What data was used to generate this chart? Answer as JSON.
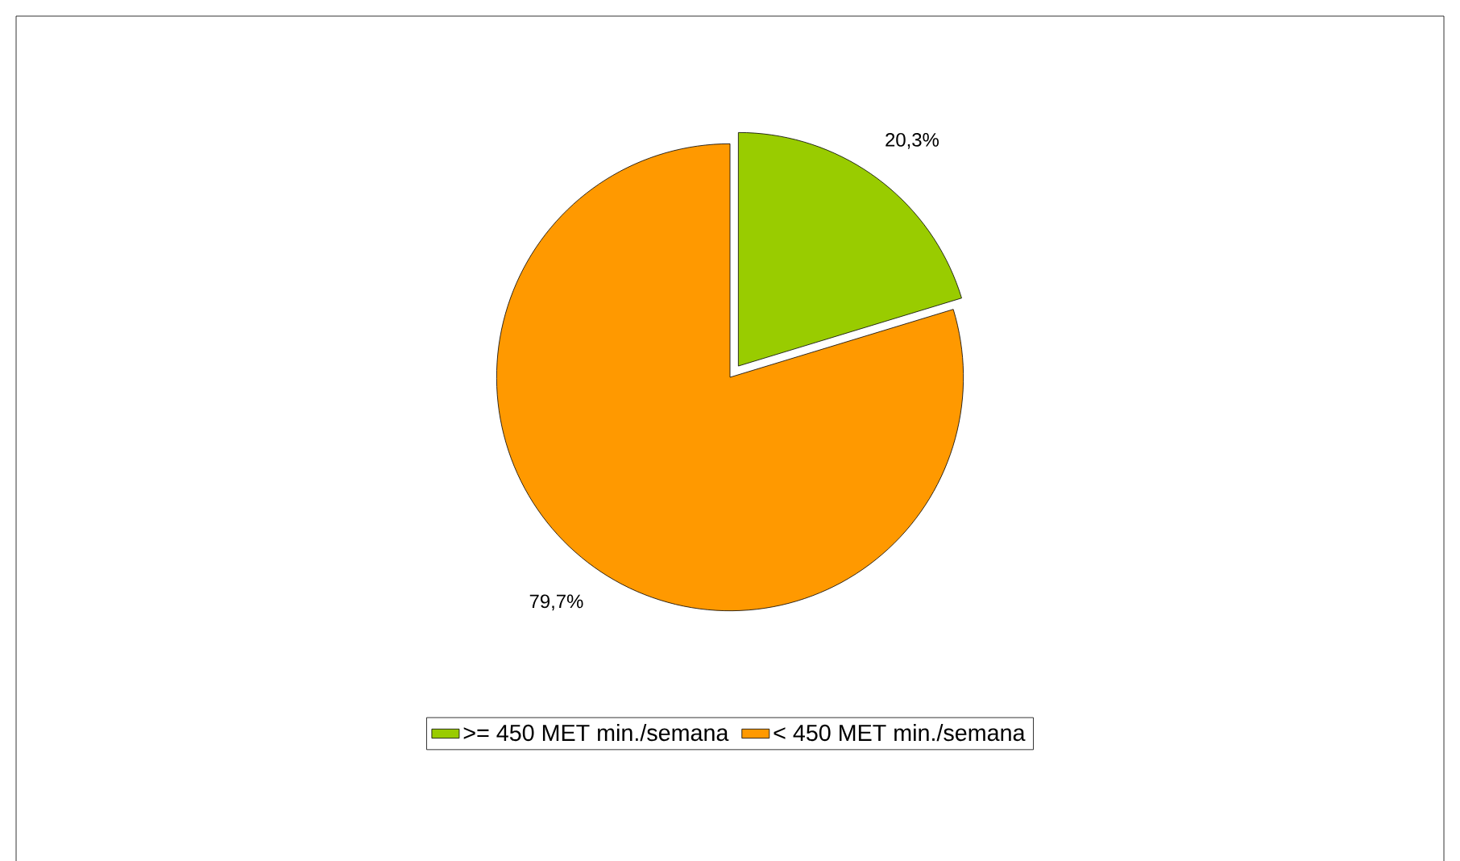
{
  "chart_data": {
    "type": "pie",
    "categories": [
      ">= 450 MET min./semana",
      "< 450 MET min./semana"
    ],
    "values": [
      20.3,
      79.7
    ],
    "colors": [
      "#99cc00",
      "#ff9900"
    ],
    "value_labels": [
      "20,3%",
      "79,7%"
    ],
    "legend": "bottom"
  }
}
